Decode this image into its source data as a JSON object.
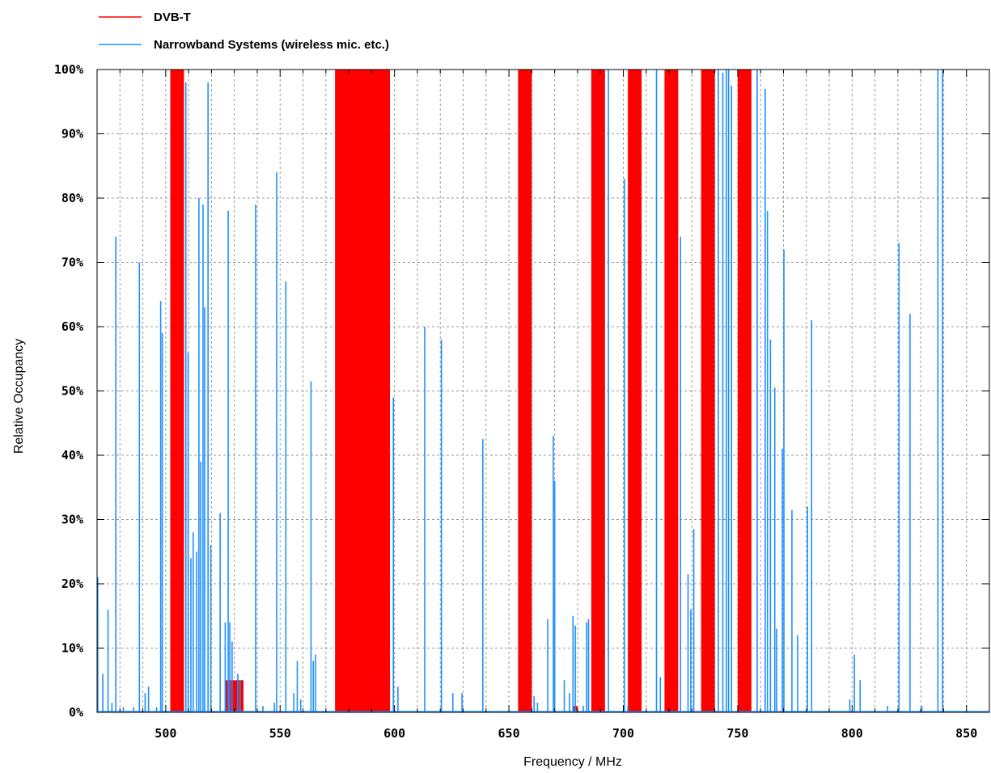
{
  "chart_data": {
    "type": "bar",
    "xlabel": "Frequency / MHz",
    "ylabel": "Relative Occupancy",
    "xlim": [
      470,
      860
    ],
    "ylim": [
      0,
      100
    ],
    "x_ticks": [
      {
        "value": 500,
        "label": "500"
      },
      {
        "value": 550,
        "label": "550"
      },
      {
        "value": 600,
        "label": "600"
      },
      {
        "value": 650,
        "label": "650"
      },
      {
        "value": 700,
        "label": "700"
      },
      {
        "value": 750,
        "label": "750"
      },
      {
        "value": 800,
        "label": "800"
      },
      {
        "value": 850,
        "label": "850"
      }
    ],
    "y_ticks": [
      {
        "value": 0,
        "label": "0%"
      },
      {
        "value": 10,
        "label": "10%"
      },
      {
        "value": 20,
        "label": "20%"
      },
      {
        "value": 30,
        "label": "30%"
      },
      {
        "value": 40,
        "label": "40%"
      },
      {
        "value": 50,
        "label": "50%"
      },
      {
        "value": 60,
        "label": "60%"
      },
      {
        "value": 70,
        "label": "70%"
      },
      {
        "value": 80,
        "label": "80%"
      },
      {
        "value": 90,
        "label": "90%"
      },
      {
        "value": 100,
        "label": "100%"
      }
    ],
    "grid": true,
    "legend_position": "top-left",
    "series": [
      {
        "name": "DVB-T",
        "color": "#ff0000",
        "kind": "band",
        "bands": [
          {
            "x0": 502,
            "x1": 508,
            "y": 100
          },
          {
            "x0": 526,
            "x1": 534,
            "y": 5
          },
          {
            "x0": 574,
            "x1": 598,
            "y": 100
          },
          {
            "x0": 654,
            "x1": 660,
            "y": 100
          },
          {
            "x0": 678,
            "x1": 680,
            "y": 1
          },
          {
            "x0": 686,
            "x1": 692,
            "y": 100
          },
          {
            "x0": 702,
            "x1": 708,
            "y": 100
          },
          {
            "x0": 718,
            "x1": 724,
            "y": 100
          },
          {
            "x0": 734,
            "x1": 740,
            "y": 100
          },
          {
            "x0": 750,
            "x1": 756,
            "y": 100
          }
        ]
      },
      {
        "name": "Narrowband Systems (wireless mic. etc.)",
        "color": "#1f8fff",
        "kind": "spike",
        "points": [
          {
            "x": 470.3,
            "y": 21
          },
          {
            "x": 472.5,
            "y": 6
          },
          {
            "x": 474.8,
            "y": 16
          },
          {
            "x": 476.5,
            "y": 1.5
          },
          {
            "x": 478.2,
            "y": 74
          },
          {
            "x": 481.5,
            "y": 0.8
          },
          {
            "x": 486,
            "y": 0.8
          },
          {
            "x": 488.5,
            "y": 70
          },
          {
            "x": 491,
            "y": 3
          },
          {
            "x": 492.5,
            "y": 4
          },
          {
            "x": 496,
            "y": 0.8
          },
          {
            "x": 497.8,
            "y": 64
          },
          {
            "x": 498.5,
            "y": 59
          },
          {
            "x": 508.8,
            "y": 98
          },
          {
            "x": 509.8,
            "y": 56
          },
          {
            "x": 511,
            "y": 24
          },
          {
            "x": 512,
            "y": 28
          },
          {
            "x": 513.5,
            "y": 25
          },
          {
            "x": 514.5,
            "y": 80
          },
          {
            "x": 515.3,
            "y": 39
          },
          {
            "x": 516.3,
            "y": 79
          },
          {
            "x": 517,
            "y": 63
          },
          {
            "x": 518.5,
            "y": 98
          },
          {
            "x": 519.7,
            "y": 26
          },
          {
            "x": 523.8,
            "y": 31
          },
          {
            "x": 526,
            "y": 14
          },
          {
            "x": 527.3,
            "y": 78
          },
          {
            "x": 528,
            "y": 14
          },
          {
            "x": 529,
            "y": 11
          },
          {
            "x": 531.5,
            "y": 6
          },
          {
            "x": 532.5,
            "y": 5
          },
          {
            "x": 539.3,
            "y": 79
          },
          {
            "x": 542.5,
            "y": 1
          },
          {
            "x": 547.5,
            "y": 1.5
          },
          {
            "x": 548.5,
            "y": 84
          },
          {
            "x": 552.5,
            "y": 67
          },
          {
            "x": 556,
            "y": 3
          },
          {
            "x": 557.5,
            "y": 8
          },
          {
            "x": 559,
            "y": 2
          },
          {
            "x": 563.5,
            "y": 51.5
          },
          {
            "x": 564.5,
            "y": 8
          },
          {
            "x": 565.5,
            "y": 9
          },
          {
            "x": 599.5,
            "y": 49
          },
          {
            "x": 601.5,
            "y": 4
          },
          {
            "x": 613.2,
            "y": 60
          },
          {
            "x": 620.5,
            "y": 58
          },
          {
            "x": 625.5,
            "y": 3
          },
          {
            "x": 629.5,
            "y": 3
          },
          {
            "x": 638.6,
            "y": 42.5
          },
          {
            "x": 661,
            "y": 2.5
          },
          {
            "x": 662.5,
            "y": 1.5
          },
          {
            "x": 667,
            "y": 14.5
          },
          {
            "x": 669.4,
            "y": 43
          },
          {
            "x": 670,
            "y": 36
          },
          {
            "x": 674.2,
            "y": 5
          },
          {
            "x": 676.5,
            "y": 3
          },
          {
            "x": 678,
            "y": 15
          },
          {
            "x": 679,
            "y": 13.5
          },
          {
            "x": 682.5,
            "y": 1
          },
          {
            "x": 684,
            "y": 14
          },
          {
            "x": 684.8,
            "y": 14.5
          },
          {
            "x": 693.5,
            "y": 100
          },
          {
            "x": 700.5,
            "y": 83
          },
          {
            "x": 702,
            "y": 1
          },
          {
            "x": 714.5,
            "y": 100
          },
          {
            "x": 716.2,
            "y": 5.5
          },
          {
            "x": 725,
            "y": 74
          },
          {
            "x": 728.3,
            "y": 21.5
          },
          {
            "x": 729.5,
            "y": 16
          },
          {
            "x": 730.8,
            "y": 28.5
          },
          {
            "x": 741.5,
            "y": 100
          },
          {
            "x": 743.5,
            "y": 99.5
          },
          {
            "x": 745,
            "y": 100
          },
          {
            "x": 746,
            "y": 100
          },
          {
            "x": 747.3,
            "y": 97.5
          },
          {
            "x": 758.5,
            "y": 100
          },
          {
            "x": 762,
            "y": 97
          },
          {
            "x": 763,
            "y": 78
          },
          {
            "x": 764.3,
            "y": 58
          },
          {
            "x": 766.2,
            "y": 50.5
          },
          {
            "x": 767,
            "y": 13
          },
          {
            "x": 769.5,
            "y": 41
          },
          {
            "x": 770.2,
            "y": 72
          },
          {
            "x": 773.7,
            "y": 31.5
          },
          {
            "x": 776.2,
            "y": 12
          },
          {
            "x": 780.5,
            "y": 32
          },
          {
            "x": 782.3,
            "y": 61
          },
          {
            "x": 799,
            "y": 2
          },
          {
            "x": 801,
            "y": 9
          },
          {
            "x": 803.5,
            "y": 5
          },
          {
            "x": 815.5,
            "y": 1
          },
          {
            "x": 820.5,
            "y": 73
          },
          {
            "x": 825.3,
            "y": 62
          },
          {
            "x": 830.5,
            "y": 1
          },
          {
            "x": 837.5,
            "y": 100
          },
          {
            "x": 839.5,
            "y": 100
          }
        ]
      }
    ]
  }
}
